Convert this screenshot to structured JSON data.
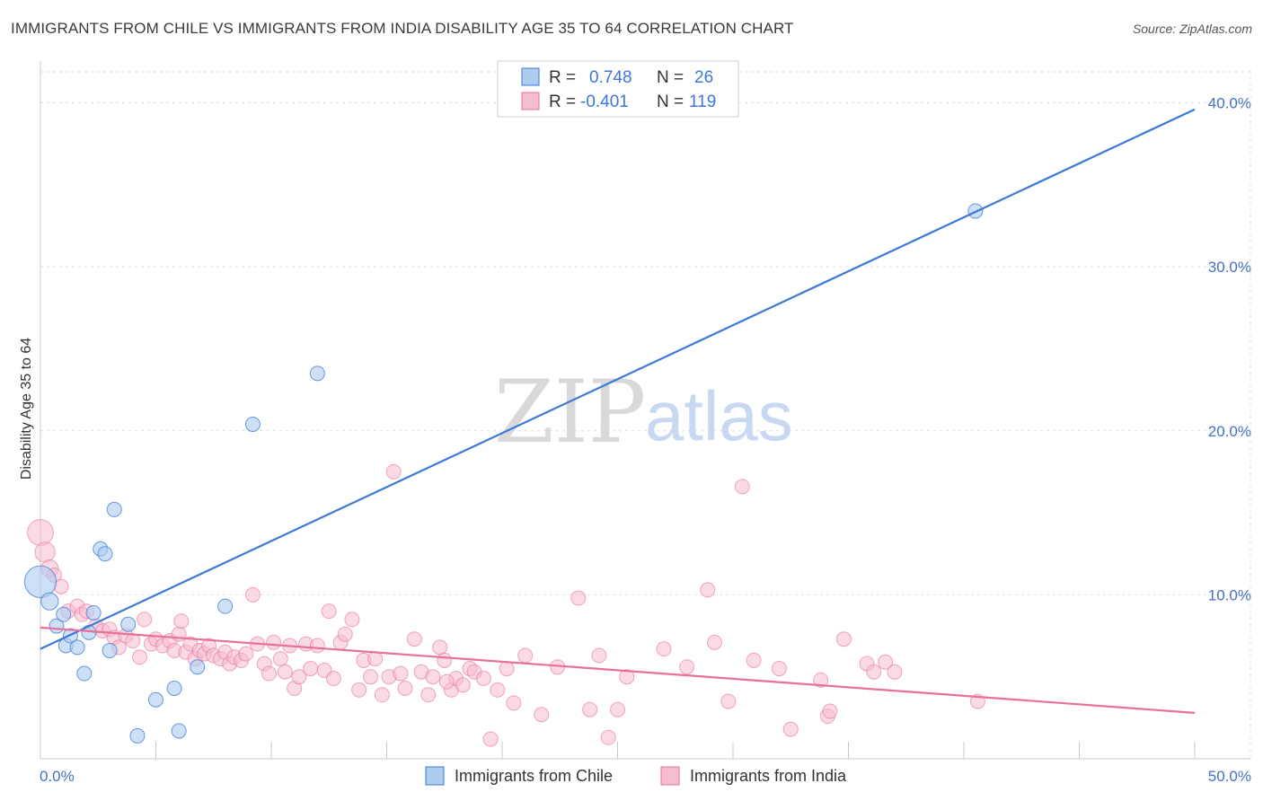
{
  "title": "IMMIGRANTS FROM CHILE VS IMMIGRANTS FROM INDIA DISABILITY AGE 35 TO 64 CORRELATION CHART",
  "source": "Source: ZipAtlas.com",
  "watermark": {
    "zip": "ZIP",
    "atlas": "atlas"
  },
  "colors": {
    "chile": "#3b78d8",
    "chile_fill": "#aecbf0",
    "india": "#e8709a",
    "india_fill": "#f6bcd0",
    "grid": "#dddddd",
    "axis_text": "#4472c4"
  },
  "legend": {
    "chile": {
      "r_label": "R =",
      "r_value": "0.748",
      "n_label": "N =",
      "n_value": "26"
    },
    "india": {
      "r_label": "R =",
      "r_value": "-0.401",
      "n_label": "N =",
      "n_value": "119"
    }
  },
  "chart_data": {
    "type": "scatter",
    "title": "IMMIGRANTS FROM CHILE VS IMMIGRANTS FROM INDIA DISABILITY AGE 35 TO 64 CORRELATION CHART",
    "xlabel": "",
    "ylabel": "Disability Age 35 to 64",
    "xlim": [
      0,
      50
    ],
    "ylim": [
      0,
      42
    ],
    "x_tick_labels": [
      "0.0%",
      "50.0%"
    ],
    "y_ticks": [
      10,
      20,
      30,
      40
    ],
    "y_tick_labels": [
      "10.0%",
      "20.0%",
      "30.0%",
      "40.0%"
    ],
    "legend_position": "top-center",
    "series": [
      {
        "name": "Immigrants from Chile",
        "trend": {
          "x": [
            0,
            50
          ],
          "y": [
            6.7,
            39.6
          ]
        },
        "points": [
          [
            0.0,
            10.8,
            2.2
          ],
          [
            0.4,
            9.6,
            1.2
          ],
          [
            0.7,
            8.1,
            1
          ],
          [
            1.0,
            8.8,
            1
          ],
          [
            1.1,
            6.9,
            1
          ],
          [
            1.3,
            7.5,
            1
          ],
          [
            1.6,
            6.8,
            1
          ],
          [
            1.9,
            5.2,
            1
          ],
          [
            2.1,
            7.7,
            1
          ],
          [
            2.3,
            8.9,
            1
          ],
          [
            2.6,
            12.8,
            1
          ],
          [
            2.8,
            12.5,
            1
          ],
          [
            3.0,
            6.6,
            1
          ],
          [
            3.2,
            15.2,
            1
          ],
          [
            3.8,
            8.2,
            1
          ],
          [
            4.2,
            1.4,
            1
          ],
          [
            5.0,
            3.6,
            1
          ],
          [
            5.8,
            4.3,
            1
          ],
          [
            6.0,
            1.7,
            1
          ],
          [
            6.8,
            5.6,
            1
          ],
          [
            8.0,
            9.3,
            1
          ],
          [
            9.2,
            20.4,
            1
          ],
          [
            12.0,
            23.5,
            1
          ],
          [
            40.5,
            33.4,
            1
          ]
        ]
      },
      {
        "name": "Immigrants from India",
        "trend": {
          "x": [
            0,
            50
          ],
          "y": [
            8.0,
            2.8
          ]
        },
        "points": [
          [
            0.0,
            13.8,
            1.8
          ],
          [
            0.2,
            12.6,
            1.4
          ],
          [
            0.4,
            11.6,
            1.2
          ],
          [
            0.6,
            11.2,
            1
          ],
          [
            0.9,
            10.5,
            1
          ],
          [
            1.2,
            9.0,
            1
          ],
          [
            1.6,
            9.3,
            1
          ],
          [
            1.8,
            8.8,
            1
          ],
          [
            2.0,
            9.0,
            1
          ],
          [
            2.4,
            8.1,
            1
          ],
          [
            2.7,
            7.8,
            1
          ],
          [
            3.0,
            7.9,
            1
          ],
          [
            3.2,
            7.4,
            1
          ],
          [
            3.4,
            6.8,
            1
          ],
          [
            3.7,
            7.5,
            1
          ],
          [
            4.0,
            7.2,
            1
          ],
          [
            4.3,
            6.2,
            1
          ],
          [
            4.5,
            8.5,
            1
          ],
          [
            4.8,
            7.0,
            1
          ],
          [
            5.0,
            7.3,
            1
          ],
          [
            5.3,
            6.9,
            1
          ],
          [
            5.6,
            7.2,
            1
          ],
          [
            5.8,
            6.6,
            1
          ],
          [
            6.0,
            7.6,
            1
          ],
          [
            6.3,
            6.5,
            1
          ],
          [
            6.5,
            7.0,
            1
          ],
          [
            6.7,
            6.1,
            1
          ],
          [
            6.9,
            6.6,
            1
          ],
          [
            7.1,
            6.4,
            1
          ],
          [
            7.3,
            6.9,
            1
          ],
          [
            7.5,
            6.3,
            1
          ],
          [
            7.8,
            6.1,
            1
          ],
          [
            8.0,
            6.5,
            1
          ],
          [
            8.2,
            5.8,
            1
          ],
          [
            8.4,
            6.2,
            1
          ],
          [
            8.7,
            6.0,
            1
          ],
          [
            8.9,
            6.4,
            1
          ],
          [
            9.2,
            10.0,
            1
          ],
          [
            9.4,
            7.0,
            1
          ],
          [
            9.7,
            5.8,
            1
          ],
          [
            9.9,
            5.2,
            1
          ],
          [
            10.1,
            7.1,
            1
          ],
          [
            10.4,
            6.1,
            1
          ],
          [
            10.6,
            5.3,
            1
          ],
          [
            10.8,
            6.9,
            1
          ],
          [
            11.0,
            4.3,
            1
          ],
          [
            11.2,
            5.0,
            1
          ],
          [
            11.5,
            7.0,
            1
          ],
          [
            11.7,
            5.5,
            1
          ],
          [
            12.0,
            6.9,
            1
          ],
          [
            12.3,
            5.4,
            1
          ],
          [
            12.5,
            9.0,
            1
          ],
          [
            12.7,
            4.9,
            1
          ],
          [
            13.0,
            7.1,
            1
          ],
          [
            13.2,
            7.6,
            1
          ],
          [
            13.5,
            8.5,
            1
          ],
          [
            13.8,
            4.2,
            1
          ],
          [
            14.0,
            6.0,
            1
          ],
          [
            14.3,
            5.0,
            1
          ],
          [
            14.5,
            6.1,
            1
          ],
          [
            14.8,
            3.9,
            1
          ],
          [
            15.1,
            5.0,
            1
          ],
          [
            15.3,
            17.5,
            1
          ],
          [
            15.6,
            5.2,
            1
          ],
          [
            15.8,
            4.3,
            1
          ],
          [
            16.2,
            7.3,
            1
          ],
          [
            16.5,
            5.3,
            1
          ],
          [
            16.8,
            3.9,
            1
          ],
          [
            17.0,
            5.0,
            1
          ],
          [
            17.3,
            6.8,
            1
          ],
          [
            17.5,
            6.0,
            1
          ],
          [
            17.8,
            4.2,
            1
          ],
          [
            18.0,
            4.9,
            1
          ],
          [
            18.3,
            4.5,
            1
          ],
          [
            18.6,
            5.5,
            1
          ],
          [
            18.8,
            5.3,
            1
          ],
          [
            19.2,
            4.9,
            1
          ],
          [
            19.5,
            1.2,
            1
          ],
          [
            19.8,
            4.2,
            1
          ],
          [
            20.2,
            5.5,
            1
          ],
          [
            20.5,
            3.4,
            1
          ],
          [
            21.0,
            6.3,
            1
          ],
          [
            21.7,
            2.7,
            1
          ],
          [
            22.4,
            5.6,
            1
          ],
          [
            23.3,
            9.8,
            1
          ],
          [
            23.8,
            3.0,
            1
          ],
          [
            24.2,
            6.3,
            1
          ],
          [
            24.6,
            1.3,
            1
          ],
          [
            25.0,
            3.0,
            1
          ],
          [
            25.4,
            5.0,
            1
          ],
          [
            27.0,
            6.7,
            1
          ],
          [
            28.0,
            5.6,
            1
          ],
          [
            28.9,
            10.3,
            1
          ],
          [
            29.2,
            7.1,
            1
          ],
          [
            29.8,
            3.5,
            1
          ],
          [
            30.4,
            16.6,
            1
          ],
          [
            30.9,
            6.0,
            1
          ],
          [
            32.0,
            5.5,
            1
          ],
          [
            32.5,
            1.8,
            1
          ],
          [
            33.8,
            4.8,
            1
          ],
          [
            34.1,
            2.6,
            1
          ],
          [
            34.2,
            2.9,
            1
          ],
          [
            34.8,
            7.3,
            1
          ],
          [
            35.8,
            5.8,
            1
          ],
          [
            36.1,
            5.3,
            1
          ],
          [
            36.6,
            5.9,
            1
          ],
          [
            37.0,
            5.3,
            1
          ],
          [
            40.6,
            3.5,
            1
          ],
          [
            17.6,
            4.7,
            1
          ],
          [
            6.1,
            8.4,
            1
          ]
        ]
      }
    ]
  },
  "bottom_legend": {
    "chile": "Immigrants from Chile",
    "india": "Immigrants from India"
  }
}
